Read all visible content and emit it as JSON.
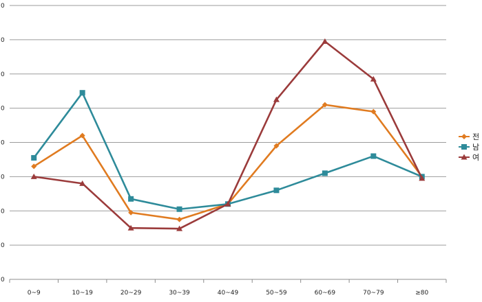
{
  "chart_data": {
    "type": "line",
    "categories": [
      "0~9",
      "10~19",
      "20~29",
      "30~39",
      "40~49",
      "50~59",
      "60~69",
      "70~79",
      "≥80"
    ],
    "y_tick_labels": [
      "0",
      "0",
      "0",
      "0",
      "0",
      "0",
      "0",
      "0",
      "0"
    ],
    "ylim": [
      0,
      8
    ],
    "grid": true,
    "legend_position": "right",
    "series": [
      {
        "name": "전",
        "color": "#e07b20",
        "marker": "diamond",
        "values": [
          3.3,
          4.2,
          1.95,
          1.75,
          2.2,
          3.9,
          5.1,
          4.9,
          3.0
        ]
      },
      {
        "name": "남",
        "color": "#2e8b9a",
        "marker": "square",
        "values": [
          3.55,
          5.45,
          2.35,
          2.05,
          2.2,
          2.6,
          3.1,
          3.6,
          3.0
        ]
      },
      {
        "name": "여",
        "color": "#9b3b3b",
        "marker": "triangle",
        "values": [
          3.0,
          2.8,
          1.5,
          1.48,
          2.2,
          5.25,
          6.95,
          5.85,
          2.95
        ]
      }
    ]
  }
}
